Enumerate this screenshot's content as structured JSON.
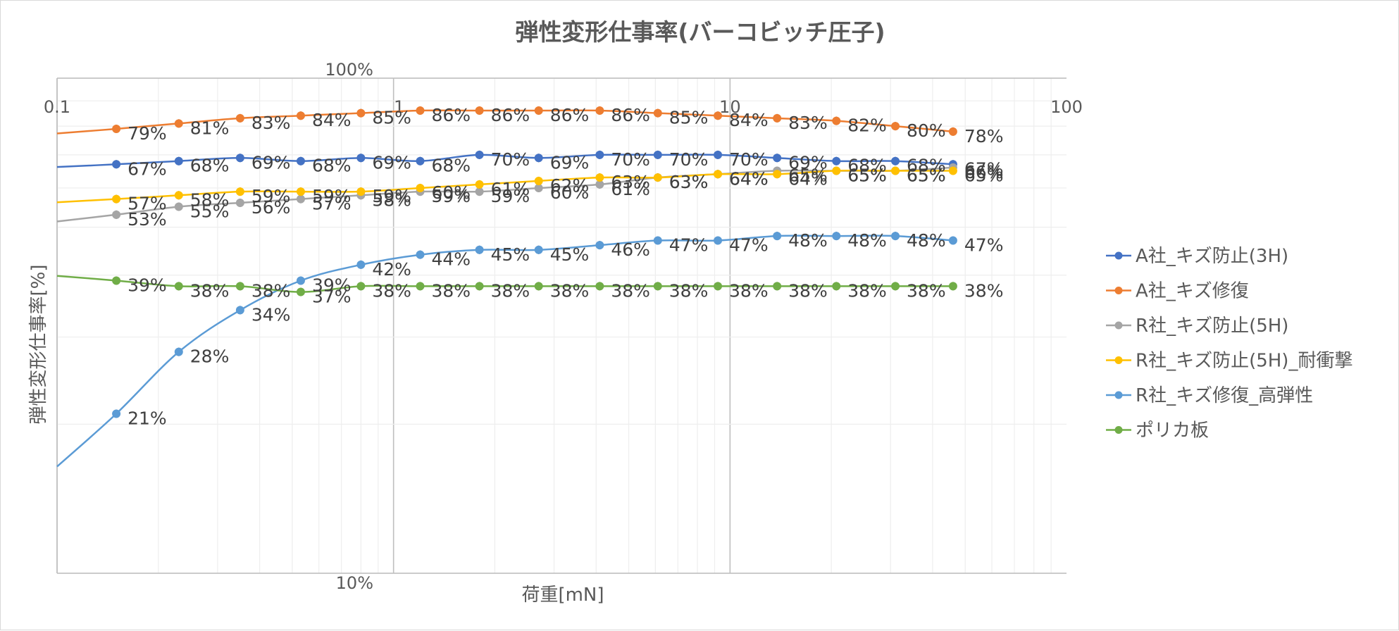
{
  "chart_data": {
    "type": "line",
    "title": "弾性変形仕事率(バーコビッチ圧子)",
    "xlabel": "荷重[mN]",
    "ylabel": "弾性変形仕事率[%]",
    "x_scale": "log",
    "y_scale": "log",
    "xlim": [
      0.1,
      100
    ],
    "ylim": [
      0.1,
      1.0
    ],
    "x_ticks": [
      {
        "value": 0.1,
        "label": "0.1"
      },
      {
        "value": 1,
        "label": "1"
      },
      {
        "value": 10,
        "label": "10"
      },
      {
        "value": 100,
        "label": "100"
      }
    ],
    "y_ticks": [
      {
        "value": 1.0,
        "label": "100%"
      },
      {
        "value": 0.1,
        "label": "10%"
      }
    ],
    "grid": true,
    "legend": "right",
    "x": [
      0.15,
      0.23,
      0.35,
      0.53,
      0.8,
      1.2,
      1.8,
      2.7,
      4.1,
      6.1,
      9.2,
      13.8,
      20.7,
      31,
      46
    ],
    "series": [
      {
        "name": "A社_キズ防止(3H)",
        "color": "#4472c4",
        "values": [
          0.67,
          0.68,
          0.69,
          0.68,
          0.69,
          0.68,
          0.7,
          0.69,
          0.7,
          0.7,
          0.7,
          0.69,
          0.68,
          0.68,
          0.67
        ],
        "labels": [
          "67%",
          "68%",
          "69%",
          "68%",
          "69%",
          "68%",
          "70%",
          "69%",
          "70%",
          "70%",
          "70%",
          "69%",
          "68%",
          "68%",
          "67%"
        ]
      },
      {
        "name": "A社_キズ修復",
        "color": "#ed7d31",
        "values": [
          0.79,
          0.81,
          0.83,
          0.84,
          0.85,
          0.86,
          0.86,
          0.86,
          0.86,
          0.85,
          0.84,
          0.83,
          0.82,
          0.8,
          0.78
        ],
        "labels": [
          "79%",
          "81%",
          "83%",
          "84%",
          "85%",
          "86%",
          "86%",
          "86%",
          "86%",
          "85%",
          "84%",
          "83%",
          "82%",
          "80%",
          "78%"
        ]
      },
      {
        "name": "R社_キズ防止(5H)",
        "color": "#a5a5a5",
        "values": [
          0.53,
          0.55,
          0.56,
          0.57,
          0.58,
          0.59,
          0.59,
          0.6,
          0.61,
          0.63,
          0.64,
          0.65,
          0.65,
          0.65,
          0.66
        ],
        "labels": [
          "53%",
          "55%",
          "56%",
          "57%",
          "58%",
          "59%",
          "59%",
          "60%",
          "61%",
          "63%",
          "64%",
          "65%",
          "65%",
          "65%",
          "66%"
        ]
      },
      {
        "name": "R社_キズ防止(5H)_耐衝撃",
        "color": "#ffc000",
        "values": [
          0.57,
          0.58,
          0.59,
          0.59,
          0.59,
          0.6,
          0.61,
          0.62,
          0.63,
          0.63,
          0.64,
          0.64,
          0.65,
          0.65,
          0.65
        ],
        "labels": [
          "57%",
          "58%",
          "59%",
          "59%",
          "59%",
          "60%",
          "61%",
          "62%",
          "63%",
          "63%",
          "64%",
          "64%",
          "65%",
          "65%",
          "65%"
        ]
      },
      {
        "name": "R社_キズ修復_高弾性",
        "color": "#5b9bd5",
        "values": [
          0.21,
          0.28,
          0.34,
          0.39,
          0.42,
          0.44,
          0.45,
          0.45,
          0.46,
          0.47,
          0.47,
          0.48,
          0.48,
          0.48,
          0.47
        ],
        "labels": [
          "21%",
          "28%",
          "34%",
          "39%",
          "42%",
          "44%",
          "45%",
          "45%",
          "46%",
          "47%",
          "47%",
          "48%",
          "48%",
          "48%",
          "47%"
        ]
      },
      {
        "name": "ポリカ板",
        "color": "#70ad47",
        "values": [
          0.39,
          0.38,
          0.38,
          0.37,
          0.38,
          0.38,
          0.38,
          0.38,
          0.38,
          0.38,
          0.38,
          0.38,
          0.38,
          0.38,
          0.38
        ],
        "labels": [
          "39%",
          "38%",
          "38%",
          "37%",
          "38%",
          "38%",
          "38%",
          "38%",
          "38%",
          "38%",
          "38%",
          "38%",
          "38%",
          "38%",
          "38%"
        ]
      }
    ]
  }
}
